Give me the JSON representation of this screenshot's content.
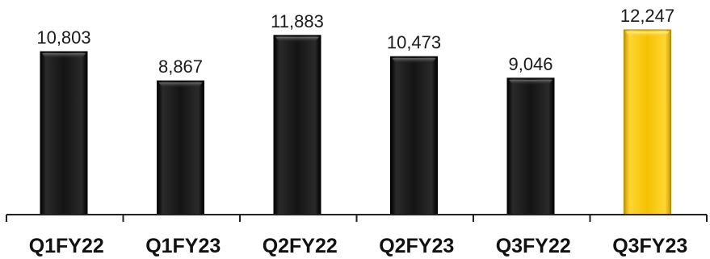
{
  "chart_data": {
    "type": "bar",
    "categories": [
      "Q1FY22",
      "Q1FY23",
      "Q2FY22",
      "Q2FY23",
      "Q3FY22",
      "Q3FY23"
    ],
    "values": [
      10803,
      8867,
      11883,
      10473,
      9046,
      12247
    ],
    "value_labels": [
      "10,803",
      "8,867",
      "11,883",
      "10,473",
      "9,046",
      "12,247"
    ],
    "ylim": [
      0,
      12247
    ],
    "grid": false,
    "legend": "none",
    "colors": {
      "default_bar": "#111111",
      "highlight_bar": "#f5c200",
      "axis": "#222222"
    },
    "highlight_index": 5
  }
}
